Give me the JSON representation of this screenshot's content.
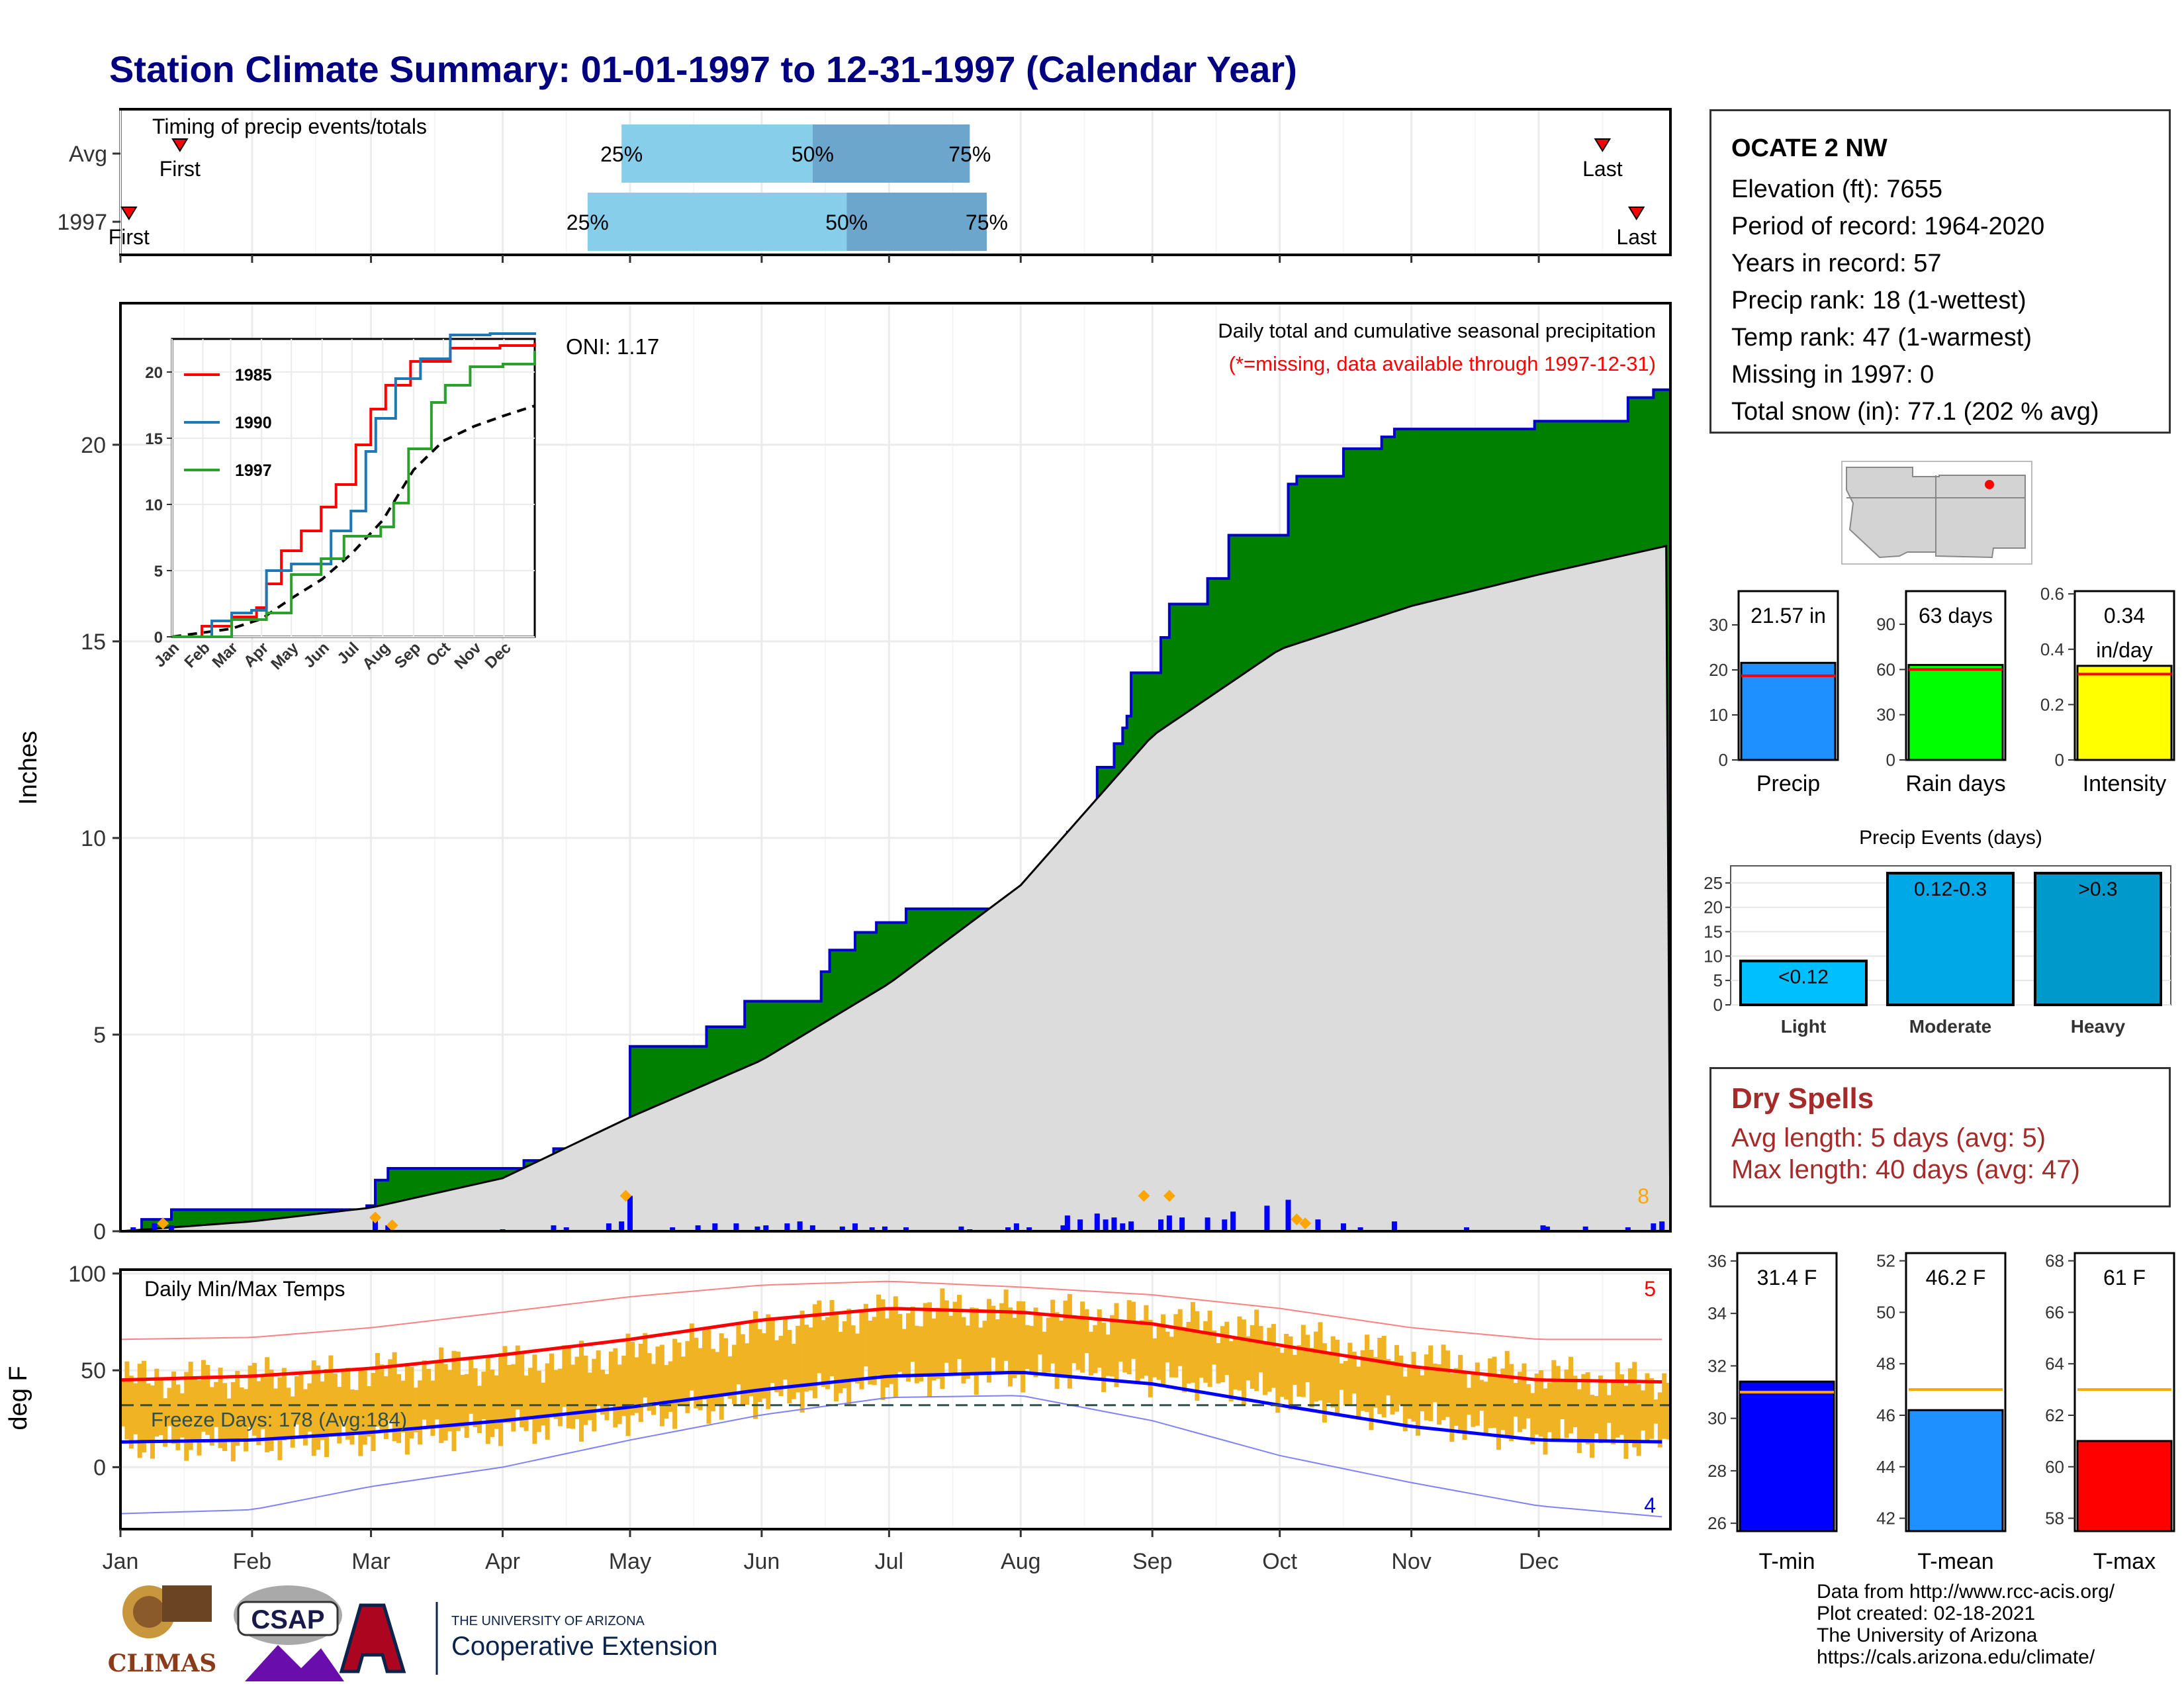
{
  "title": "Station Climate Summary: 01-01-1997 to 12-31-1997 (Calendar Year)",
  "station": {
    "name": "OCATE 2 NW",
    "lines": [
      "Elevation (ft): 7655",
      "Period of record: 1964-2020",
      "Years in record: 57",
      "Precip rank: 18 (1-wettest)",
      "Temp rank: 47 (1-warmest)",
      "Missing in 1997: 0",
      "Total snow (in): 77.1 (202 % avg)"
    ]
  },
  "colors": {
    "title": "#000080",
    "observed": "#008000",
    "observed_edge": "#0000CC",
    "normal": "#DCDCDC",
    "q_light": "#87CEEB",
    "q_dark": "#6CA6CD",
    "temp_bar": "#F0B323",
    "tmax_line": "#FF0000",
    "tmin_line": "#0000FF",
    "dry_spell": "#A52A2A"
  },
  "months": [
    "Jan",
    "Feb",
    "Mar",
    "Apr",
    "May",
    "Jun",
    "Jul",
    "Aug",
    "Sep",
    "Oct",
    "Nov",
    "Dec"
  ],
  "chart_data": [
    {
      "type": "bar",
      "name": "timing",
      "title": "Timing of precip events/totals",
      "rows": [
        {
          "label": "Avg",
          "first_doy": 14,
          "q25": 118,
          "q50": 163,
          "q75": 200,
          "last_doy": 349
        },
        {
          "label": "1997",
          "first_doy": 2,
          "q25": 110,
          "q50": 171,
          "q75": 204,
          "last_doy": 357
        }
      ],
      "marker_labels": {
        "first": "First",
        "last": "Last",
        "q25": "25%",
        "q50": "50%",
        "q75": "75%"
      }
    },
    {
      "type": "area",
      "name": "cumulative_precip",
      "title": "Daily total and cumulative seasonal precipitation",
      "subtitle": "(*=missing, data available through 1997-12-31)",
      "ylabel": "Inches",
      "ylim": [
        0,
        23.6
      ],
      "yticks": [
        0,
        5,
        10,
        15,
        20
      ],
      "oni": "ONI: 1.17",
      "corner_label": "8",
      "cumulative_observed": [
        [
          0,
          0
        ],
        [
          5,
          0.3
        ],
        [
          12,
          0.55
        ],
        [
          58,
          0.65
        ],
        [
          60,
          1.3
        ],
        [
          63,
          1.6
        ],
        [
          95,
          1.8
        ],
        [
          102,
          2.1
        ],
        [
          115,
          2.4
        ],
        [
          120,
          4.7
        ],
        [
          138,
          5.2
        ],
        [
          147,
          5.85
        ],
        [
          165,
          6.6
        ],
        [
          167,
          7.15
        ],
        [
          173,
          7.6
        ],
        [
          178,
          7.85
        ],
        [
          185,
          8.2
        ],
        [
          210,
          8.3
        ],
        [
          213,
          8.85
        ],
        [
          222,
          9.15
        ],
        [
          223,
          10.15
        ],
        [
          230,
          11.8
        ],
        [
          234,
          12.4
        ],
        [
          236,
          12.8
        ],
        [
          237,
          13.1
        ],
        [
          238,
          14.2
        ],
        [
          245,
          15.1
        ],
        [
          247,
          15.95
        ],
        [
          256,
          16.6
        ],
        [
          261,
          17.7
        ],
        [
          275,
          19.0
        ],
        [
          277,
          19.2
        ],
        [
          288,
          19.9
        ],
        [
          297,
          20.2
        ],
        [
          300,
          20.4
        ],
        [
          333,
          20.6
        ],
        [
          355,
          21.2
        ],
        [
          361,
          21.4
        ],
        [
          365,
          21.57
        ]
      ],
      "cumulative_normal": [
        [
          0,
          0
        ],
        [
          31,
          0.25
        ],
        [
          59,
          0.6
        ],
        [
          90,
          1.35
        ],
        [
          120,
          2.9
        ],
        [
          151,
          4.35
        ],
        [
          181,
          6.3
        ],
        [
          212,
          8.8
        ],
        [
          243,
          12.6
        ],
        [
          273,
          14.8
        ],
        [
          304,
          15.9
        ],
        [
          334,
          16.7
        ],
        [
          365,
          17.45
        ]
      ],
      "daily_bars": [
        [
          3,
          0.1
        ],
        [
          8,
          0.2
        ],
        [
          12,
          0.15
        ],
        [
          60,
          0.3
        ],
        [
          63,
          0.15
        ],
        [
          90,
          0.05
        ],
        [
          102,
          0.15
        ],
        [
          105,
          0.1
        ],
        [
          115,
          0.2
        ],
        [
          118,
          0.25
        ],
        [
          120,
          0.9
        ],
        [
          130,
          0.1
        ],
        [
          136,
          0.15
        ],
        [
          140,
          0.2
        ],
        [
          145,
          0.2
        ],
        [
          150,
          0.12
        ],
        [
          152,
          0.15
        ],
        [
          157,
          0.2
        ],
        [
          160,
          0.25
        ],
        [
          163,
          0.15
        ],
        [
          170,
          0.12
        ],
        [
          173,
          0.2
        ],
        [
          177,
          0.1
        ],
        [
          180,
          0.12
        ],
        [
          185,
          0.1
        ],
        [
          198,
          0.12
        ],
        [
          200,
          0.05
        ],
        [
          209,
          0.1
        ],
        [
          211,
          0.2
        ],
        [
          214,
          0.1
        ],
        [
          222,
          0.15
        ],
        [
          223,
          0.4
        ],
        [
          226,
          0.3
        ],
        [
          230,
          0.45
        ],
        [
          232,
          0.3
        ],
        [
          234,
          0.35
        ],
        [
          236,
          0.2
        ],
        [
          238,
          0.25
        ],
        [
          245,
          0.3
        ],
        [
          247,
          0.4
        ],
        [
          250,
          0.35
        ],
        [
          256,
          0.35
        ],
        [
          260,
          0.3
        ],
        [
          262,
          0.5
        ],
        [
          270,
          0.65
        ],
        [
          275,
          0.8
        ],
        [
          282,
          0.3
        ],
        [
          288,
          0.2
        ],
        [
          292,
          0.1
        ],
        [
          300,
          0.25
        ],
        [
          317,
          0.1
        ],
        [
          335,
          0.15
        ],
        [
          336,
          0.12
        ],
        [
          345,
          0.12
        ],
        [
          355,
          0.1
        ],
        [
          361,
          0.2
        ],
        [
          363,
          0.25
        ]
      ],
      "snow_markers": [
        [
          10,
          0.2
        ],
        [
          60,
          0.35
        ],
        [
          64,
          0.15
        ],
        [
          119,
          0.9
        ],
        [
          241,
          0.9
        ],
        [
          247,
          0.9
        ],
        [
          277,
          0.3
        ],
        [
          279,
          0.2
        ]
      ]
    },
    {
      "type": "line",
      "name": "cumulative_inset",
      "series": [
        {
          "name": "1985",
          "color": "#FF0000",
          "points": [
            [
              0,
              0
            ],
            [
              30,
              0.8
            ],
            [
              60,
              1.5
            ],
            [
              85,
              2.2
            ],
            [
              95,
              4.0
            ],
            [
              110,
              6.5
            ],
            [
              130,
              8.0
            ],
            [
              150,
              9.8
            ],
            [
              165,
              11.5
            ],
            [
              185,
              14.5
            ],
            [
              200,
              17.2
            ],
            [
              215,
              19.0
            ],
            [
              240,
              20.8
            ],
            [
              280,
              21.8
            ],
            [
              330,
              22.0
            ],
            [
              365,
              22.2
            ]
          ]
        },
        {
          "name": "1990",
          "color": "#1F77B4",
          "points": [
            [
              0,
              0
            ],
            [
              40,
              1.2
            ],
            [
              60,
              1.8
            ],
            [
              80,
              2.0
            ],
            [
              95,
              5.0
            ],
            [
              120,
              5.5
            ],
            [
              160,
              8.0
            ],
            [
              180,
              9.5
            ],
            [
              195,
              14.0
            ],
            [
              205,
              16.5
            ],
            [
              225,
              19.5
            ],
            [
              250,
              21.0
            ],
            [
              280,
              22.8
            ],
            [
              320,
              22.9
            ],
            [
              365,
              23.0
            ]
          ]
        },
        {
          "name": "1997",
          "color": "#2CA02C",
          "points": [
            [
              0,
              0
            ],
            [
              60,
              1.3
            ],
            [
              95,
              1.8
            ],
            [
              120,
              4.7
            ],
            [
              150,
              5.9
            ],
            [
              173,
              7.6
            ],
            [
              210,
              8.3
            ],
            [
              223,
              10.1
            ],
            [
              238,
              14.2
            ],
            [
              261,
              17.7
            ],
            [
              275,
              19.0
            ],
            [
              300,
              20.4
            ],
            [
              333,
              20.6
            ],
            [
              365,
              21.6
            ]
          ]
        }
      ],
      "normal_points": [
        [
          0,
          0
        ],
        [
          59,
          0.6
        ],
        [
          90,
          1.35
        ],
        [
          120,
          2.9
        ],
        [
          151,
          4.35
        ],
        [
          181,
          6.3
        ],
        [
          212,
          8.8
        ],
        [
          243,
          12.6
        ],
        [
          273,
          14.8
        ],
        [
          304,
          15.9
        ],
        [
          334,
          16.7
        ],
        [
          365,
          17.45
        ]
      ],
      "ylim": [
        0,
        22.5
      ],
      "yticks": [
        0,
        5,
        10,
        15,
        20
      ]
    },
    {
      "type": "bar",
      "name": "daily_temps",
      "title": "Daily Min/Max Temps",
      "ylabel": "deg F",
      "ylim": [
        -32,
        102
      ],
      "yticks": [
        0,
        50,
        100
      ],
      "freeze_label": "Freeze Days: 178 (Avg:184)",
      "freeze_line": 32,
      "corner_max": "5",
      "corner_min": "4",
      "avg_max": [
        [
          0,
          45
        ],
        [
          31,
          47
        ],
        [
          59,
          51
        ],
        [
          90,
          58
        ],
        [
          120,
          66
        ],
        [
          151,
          76
        ],
        [
          181,
          82
        ],
        [
          212,
          80
        ],
        [
          243,
          74
        ],
        [
          273,
          63
        ],
        [
          304,
          52
        ],
        [
          334,
          45
        ],
        [
          365,
          44
        ]
      ],
      "avg_min": [
        [
          0,
          13
        ],
        [
          31,
          14
        ],
        [
          59,
          18
        ],
        [
          90,
          24
        ],
        [
          120,
          31
        ],
        [
          151,
          40
        ],
        [
          181,
          47
        ],
        [
          212,
          49
        ],
        [
          243,
          43
        ],
        [
          273,
          32
        ],
        [
          304,
          21
        ],
        [
          334,
          14
        ],
        [
          365,
          13
        ]
      ],
      "rec_max": [
        [
          0,
          66
        ],
        [
          31,
          67
        ],
        [
          59,
          72
        ],
        [
          90,
          80
        ],
        [
          120,
          88
        ],
        [
          151,
          94
        ],
        [
          181,
          96
        ],
        [
          212,
          93
        ],
        [
          243,
          89
        ],
        [
          273,
          82
        ],
        [
          304,
          72
        ],
        [
          334,
          66
        ],
        [
          365,
          66
        ]
      ],
      "rec_min": [
        [
          0,
          -24
        ],
        [
          31,
          -22
        ],
        [
          59,
          -10
        ],
        [
          90,
          0
        ],
        [
          120,
          14
        ],
        [
          151,
          27
        ],
        [
          181,
          36
        ],
        [
          212,
          37
        ],
        [
          243,
          24
        ],
        [
          273,
          6
        ],
        [
          304,
          -8
        ],
        [
          334,
          -20
        ],
        [
          365,
          -26
        ]
      ],
      "obs_max_monthly": [
        46,
        47,
        52,
        55,
        64,
        78,
        82,
        79,
        74,
        62,
        51,
        45
      ],
      "obs_min_monthly": [
        12,
        13,
        17,
        22,
        30,
        40,
        47,
        49,
        43,
        31,
        20,
        13
      ]
    },
    {
      "type": "bar",
      "name": "precip_totals",
      "panels": [
        {
          "label": "Precip",
          "value": 21.57,
          "value_label": "21.57 in",
          "avg": 18.7,
          "ylim": [
            0,
            37.5
          ],
          "yticks": [
            0,
            10,
            20,
            30
          ],
          "color": "#1E90FF"
        },
        {
          "label": "Rain days",
          "value": 63,
          "value_label": "63 days",
          "avg": 60,
          "ylim": [
            0,
            112
          ],
          "yticks": [
            0,
            30,
            60,
            90
          ],
          "color": "#00FF00"
        },
        {
          "label": "Intensity",
          "value": 0.34,
          "value_label": "0.34",
          "value_label2": "in/day",
          "avg": 0.31,
          "ylim": [
            0,
            0.61
          ],
          "yticks": [
            0.0,
            0.2,
            0.4,
            0.6
          ],
          "color": "#FFFF00"
        }
      ]
    },
    {
      "type": "bar",
      "name": "precip_events",
      "title": "Precip Events (days)",
      "categories": [
        "Light",
        "Moderate",
        "Heavy"
      ],
      "values": [
        9,
        27,
        27
      ],
      "bar_labels": [
        "<0.12",
        "0.12-0.3",
        ">0.3"
      ],
      "ylim": [
        0,
        28.5
      ],
      "yticks": [
        0,
        5,
        10,
        15,
        20,
        25
      ]
    },
    {
      "type": "bar",
      "name": "temp_means",
      "panels": [
        {
          "label": "T-min",
          "value": 31.4,
          "value_label": "31.4 F",
          "avg": 31.0,
          "ylim": [
            25.7,
            36.3
          ],
          "yticks": [
            26,
            28,
            30,
            32,
            34,
            36
          ],
          "color": "#0000FF"
        },
        {
          "label": "T-mean",
          "value": 46.2,
          "value_label": "46.2 F",
          "avg": 47.0,
          "ylim": [
            41.5,
            52.3
          ],
          "yticks": [
            42,
            44,
            46,
            48,
            50,
            52
          ],
          "color": "#1E90FF"
        },
        {
          "label": "T-max",
          "value": 61,
          "value_label": "61 F",
          "avg": 63.0,
          "ylim": [
            57.5,
            68.3
          ],
          "yticks": [
            58,
            60,
            62,
            64,
            66,
            68
          ],
          "color": "#FF0000"
        }
      ]
    }
  ],
  "dry_spells": {
    "title": "Dry Spells",
    "avg_length": "Avg length: 5 days (avg: 5)",
    "max_length": "Max length: 40 days (avg: 47)"
  },
  "credits": [
    "Data from http://www.rcc-acis.org/",
    "Plot created: 02-18-2021",
    "The University of Arizona",
    "https://cals.arizona.edu/climate/"
  ],
  "logos": {
    "climas": "CLIMAS",
    "csap": "CSAP",
    "ua_small": "THE UNIVERSITY OF ARIZONA",
    "ua_big": "Cooperative Extension"
  }
}
